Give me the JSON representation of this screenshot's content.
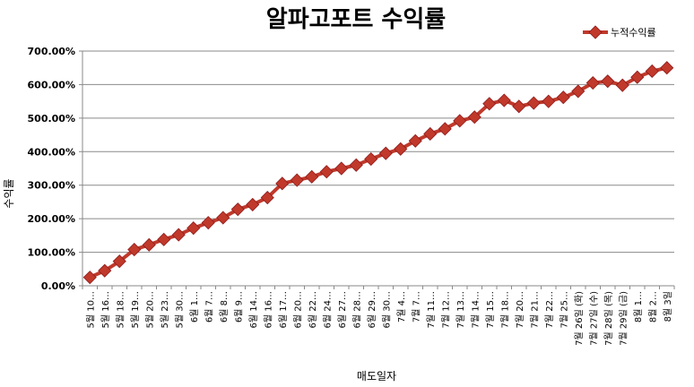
{
  "chart_data": {
    "type": "line",
    "title": "알파고포트 수익률",
    "xlabel": "매도일자",
    "ylabel": "수익률",
    "ylim": [
      0,
      700
    ],
    "y_tick_labels": [
      "0.00%",
      "100.00%",
      "200.00%",
      "300.00%",
      "400.00%",
      "500.00%",
      "600.00%",
      "700.00%"
    ],
    "grid": "horizontal",
    "legend_position": "top-right",
    "categories": [
      "5월 10…",
      "5월 16…",
      "5월 18…",
      "5월 19…",
      "5월 20…",
      "5월 23…",
      "5월 30…",
      "6월 1…",
      "6월 7…",
      "6월 8…",
      "6월 9…",
      "6월 14…",
      "6월 16…",
      "6월 17…",
      "6월 20…",
      "6월 22…",
      "6월 24…",
      "6월 27…",
      "6월 28…",
      "6월 29…",
      "6월 30…",
      "7월 4…",
      "7월 7…",
      "7월 11…",
      "7월 12…",
      "7월 13…",
      "7월 14…",
      "7월 15…",
      "7월 18…",
      "7월 20…",
      "7월 21…",
      "7월 22…",
      "7월 25…",
      "7월 26일 (화)",
      "7월 27일 (수)",
      "7월 28일 (목)",
      "7월 29일 (금)",
      "8월 1…",
      "8월 2…",
      "8월 3일"
    ],
    "series": [
      {
        "name": "누적수익률",
        "color": "#c0392b",
        "values": [
          25,
          45,
          73,
          108,
          122,
          138,
          152,
          172,
          188,
          203,
          228,
          242,
          263,
          305,
          315,
          325,
          340,
          350,
          360,
          378,
          395,
          408,
          432,
          453,
          468,
          492,
          503,
          543,
          553,
          535,
          545,
          550,
          562,
          580,
          605,
          610,
          598,
          622,
          640,
          650
        ]
      }
    ]
  }
}
